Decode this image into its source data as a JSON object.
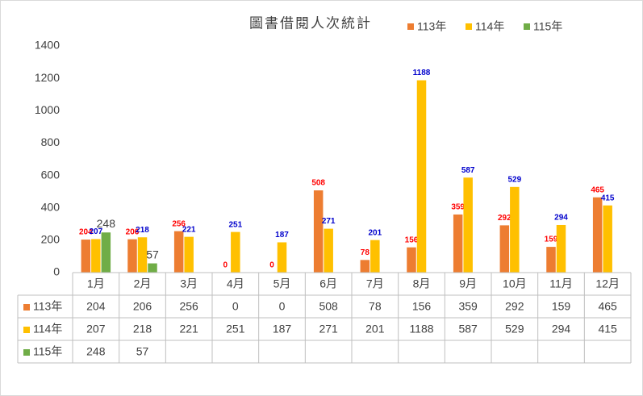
{
  "chart_data": {
    "type": "bar",
    "title": "圖書借閱人次統計",
    "categories": [
      "1月",
      "2月",
      "3月",
      "4月",
      "5月",
      "6月",
      "7月",
      "8月",
      "9月",
      "10月",
      "11月",
      "12月"
    ],
    "series": [
      {
        "name": "113年",
        "color": "#ed7d31",
        "label_color": "#ff0000",
        "values": [
          204,
          206,
          256,
          0,
          0,
          508,
          78,
          156,
          359,
          292,
          159,
          465
        ]
      },
      {
        "name": "114年",
        "color": "#ffc000",
        "label_color": "#0000cc",
        "values": [
          207,
          218,
          221,
          251,
          187,
          271,
          201,
          1188,
          587,
          529,
          294,
          415
        ]
      },
      {
        "name": "115年",
        "color": "#70ad47",
        "label_color": "#404040",
        "values": [
          248,
          57,
          null,
          null,
          null,
          null,
          null,
          null,
          null,
          null,
          null,
          null
        ]
      }
    ],
    "ylim": [
      0,
      1400
    ],
    "yticks": [
      0,
      200,
      400,
      600,
      800,
      1000,
      1200,
      1400
    ],
    "grid": false,
    "legend": "top",
    "data_table": true
  }
}
